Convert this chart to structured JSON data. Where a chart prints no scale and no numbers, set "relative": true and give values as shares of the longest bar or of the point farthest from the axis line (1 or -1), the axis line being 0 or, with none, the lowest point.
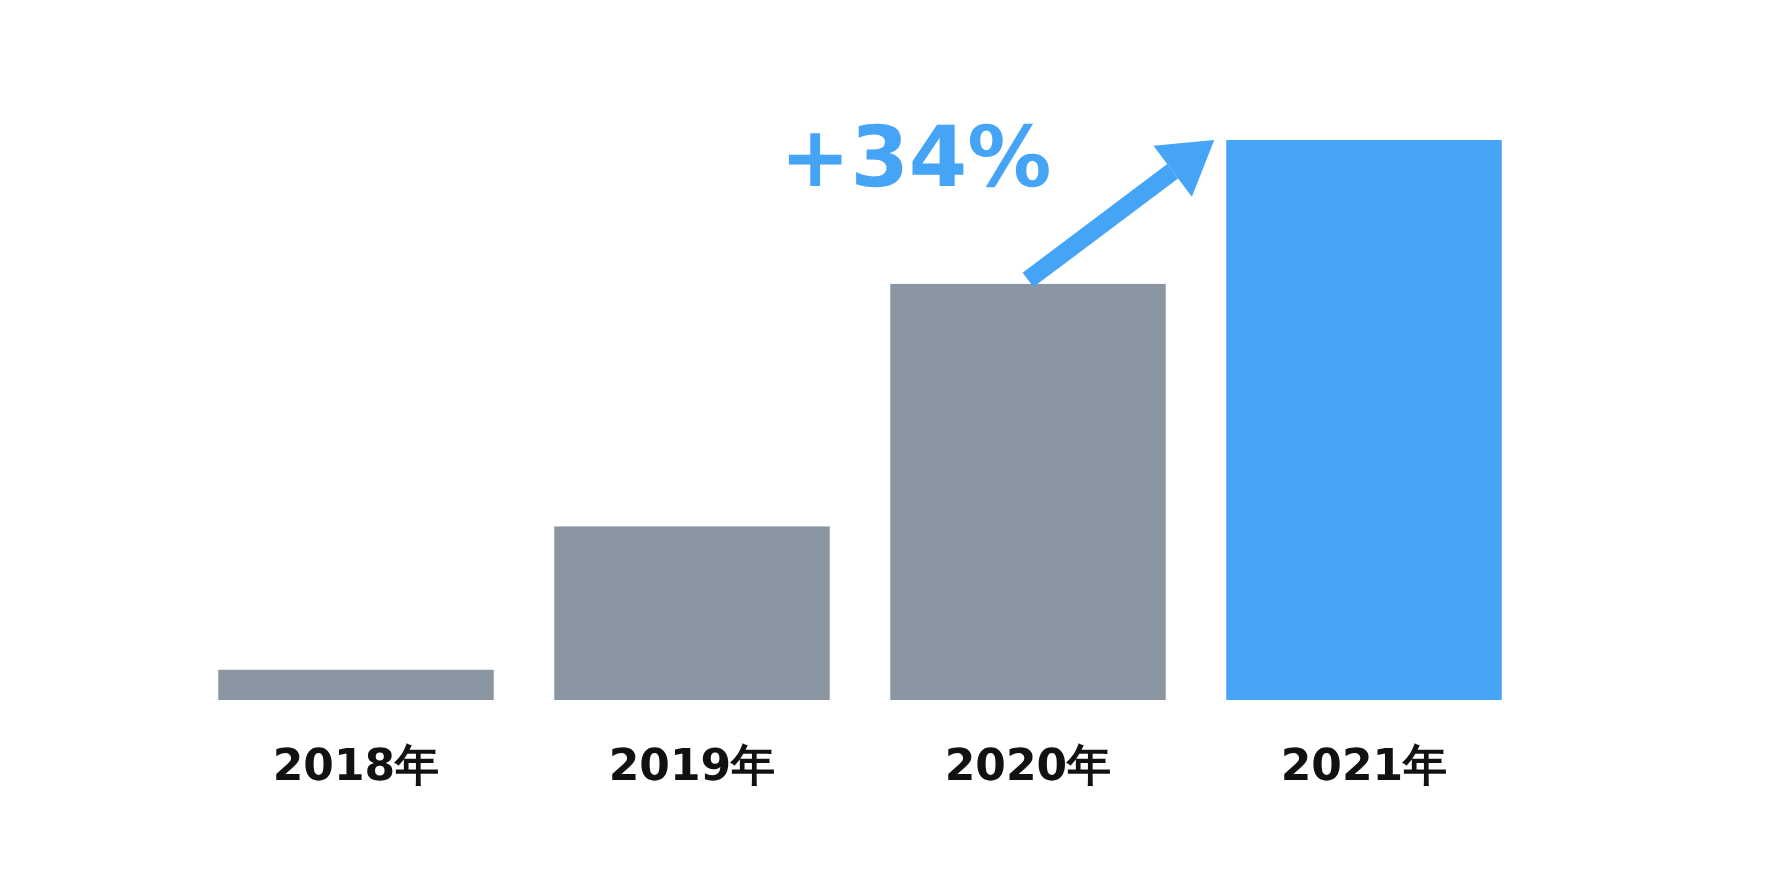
{
  "chart_data": {
    "type": "bar",
    "relative": true,
    "categories": [
      "2018年",
      "2019年",
      "2020年",
      "2021年"
    ],
    "values": [
      0.054,
      0.31,
      0.743,
      1
    ],
    "colors": [
      "#8a97a3",
      "#8a97a3",
      "#8a97a3",
      "#46a4f7"
    ],
    "annotations": [
      "+34%"
    ]
  }
}
